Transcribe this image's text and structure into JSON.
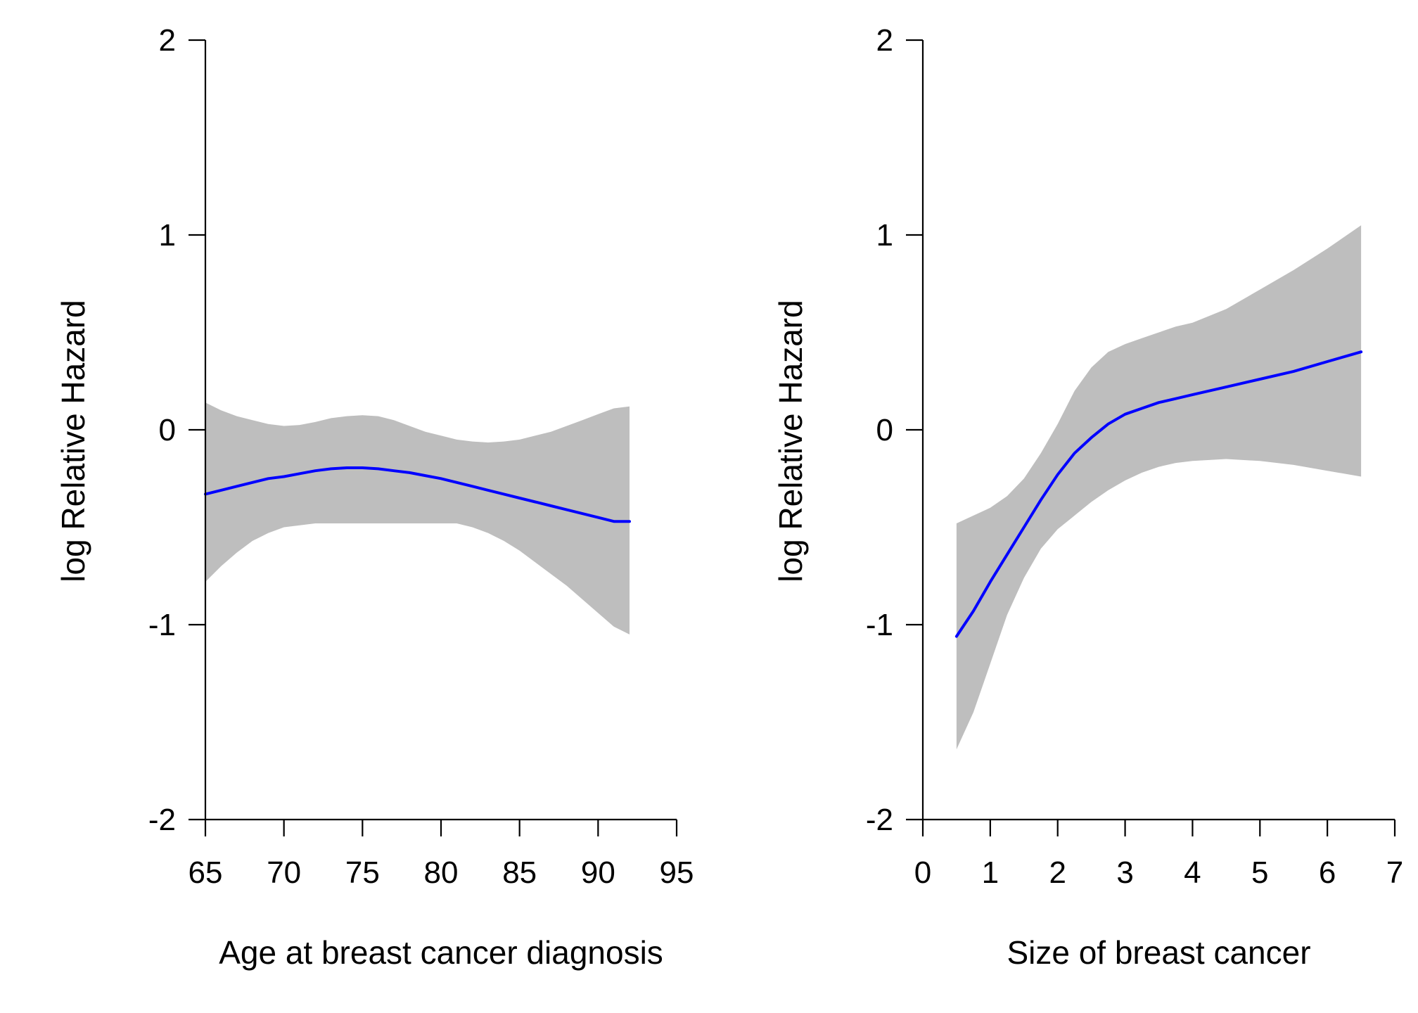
{
  "chart_data": [
    {
      "type": "line",
      "xlabel": "Age at breast cancer diagnosis",
      "ylabel": "log Relative Hazard",
      "xlim": [
        65,
        95
      ],
      "ylim": [
        -2,
        2
      ],
      "x_ticks": [
        65,
        70,
        75,
        80,
        85,
        90,
        95
      ],
      "x_tick_labels": [
        "65",
        "70",
        "75",
        "80",
        "85",
        "90",
        "95"
      ],
      "y_ticks": [
        -2,
        -1,
        0,
        1,
        2
      ],
      "y_tick_labels": [
        "-2",
        "-1",
        "0",
        "1",
        "2"
      ],
      "grid": false,
      "colors": {
        "line": "#0000ff",
        "band": "#bebebe"
      },
      "x": [
        65,
        66,
        67,
        68,
        69,
        70,
        71,
        72,
        73,
        74,
        75,
        76,
        77,
        78,
        79,
        80,
        81,
        82,
        83,
        84,
        85,
        86,
        87,
        88,
        89,
        90,
        91,
        92
      ],
      "y": [
        -0.33,
        -0.31,
        -0.29,
        -0.27,
        -0.25,
        -0.24,
        -0.225,
        -0.21,
        -0.2,
        -0.195,
        -0.195,
        -0.2,
        -0.21,
        -0.22,
        -0.235,
        -0.25,
        -0.27,
        -0.29,
        -0.31,
        -0.33,
        -0.35,
        -0.37,
        -0.39,
        -0.41,
        -0.43,
        -0.45,
        -0.47,
        -0.47
      ],
      "upper": [
        0.14,
        0.1,
        0.07,
        0.05,
        0.03,
        0.02,
        0.025,
        0.04,
        0.06,
        0.07,
        0.075,
        0.07,
        0.05,
        0.02,
        -0.01,
        -0.03,
        -0.05,
        -0.06,
        -0.065,
        -0.06,
        -0.05,
        -0.03,
        -0.01,
        0.02,
        0.05,
        0.08,
        0.11,
        0.12
      ],
      "lower": [
        -0.78,
        -0.7,
        -0.63,
        -0.57,
        -0.53,
        -0.5,
        -0.49,
        -0.48,
        -0.48,
        -0.48,
        -0.48,
        -0.48,
        -0.48,
        -0.48,
        -0.48,
        -0.48,
        -0.48,
        -0.5,
        -0.53,
        -0.57,
        -0.62,
        -0.68,
        -0.74,
        -0.8,
        -0.87,
        -0.94,
        -1.01,
        -1.05
      ]
    },
    {
      "type": "line",
      "xlabel": "Size of breast cancer",
      "ylabel": "log Relative Hazard",
      "xlim": [
        0,
        7
      ],
      "ylim": [
        -2,
        2
      ],
      "x_ticks": [
        0,
        1,
        2,
        3,
        4,
        5,
        6,
        7
      ],
      "x_tick_labels": [
        "0",
        "1",
        "2",
        "3",
        "4",
        "5",
        "6",
        "7"
      ],
      "y_ticks": [
        -2,
        -1,
        0,
        1,
        2
      ],
      "y_tick_labels": [
        "-2",
        "-1",
        "0",
        "1",
        "2"
      ],
      "grid": false,
      "colors": {
        "line": "#0000ff",
        "band": "#bebebe"
      },
      "x": [
        0.5,
        0.75,
        1.0,
        1.25,
        1.5,
        1.75,
        2.0,
        2.25,
        2.5,
        2.75,
        3.0,
        3.25,
        3.5,
        3.75,
        4.0,
        4.5,
        5.0,
        5.5,
        6.0,
        6.5
      ],
      "y": [
        -1.06,
        -0.93,
        -0.78,
        -0.64,
        -0.5,
        -0.36,
        -0.23,
        -0.12,
        -0.04,
        0.03,
        0.08,
        0.11,
        0.14,
        0.16,
        0.18,
        0.22,
        0.26,
        0.3,
        0.35,
        0.4
      ],
      "upper": [
        -0.48,
        -0.44,
        -0.4,
        -0.34,
        -0.25,
        -0.12,
        0.03,
        0.2,
        0.32,
        0.4,
        0.44,
        0.47,
        0.5,
        0.53,
        0.55,
        0.62,
        0.72,
        0.82,
        0.93,
        1.05
      ],
      "lower": [
        -1.64,
        -1.45,
        -1.2,
        -0.95,
        -0.76,
        -0.61,
        -0.51,
        -0.44,
        -0.37,
        -0.31,
        -0.26,
        -0.22,
        -0.19,
        -0.17,
        -0.16,
        -0.15,
        -0.16,
        -0.18,
        -0.21,
        -0.24
      ]
    }
  ]
}
